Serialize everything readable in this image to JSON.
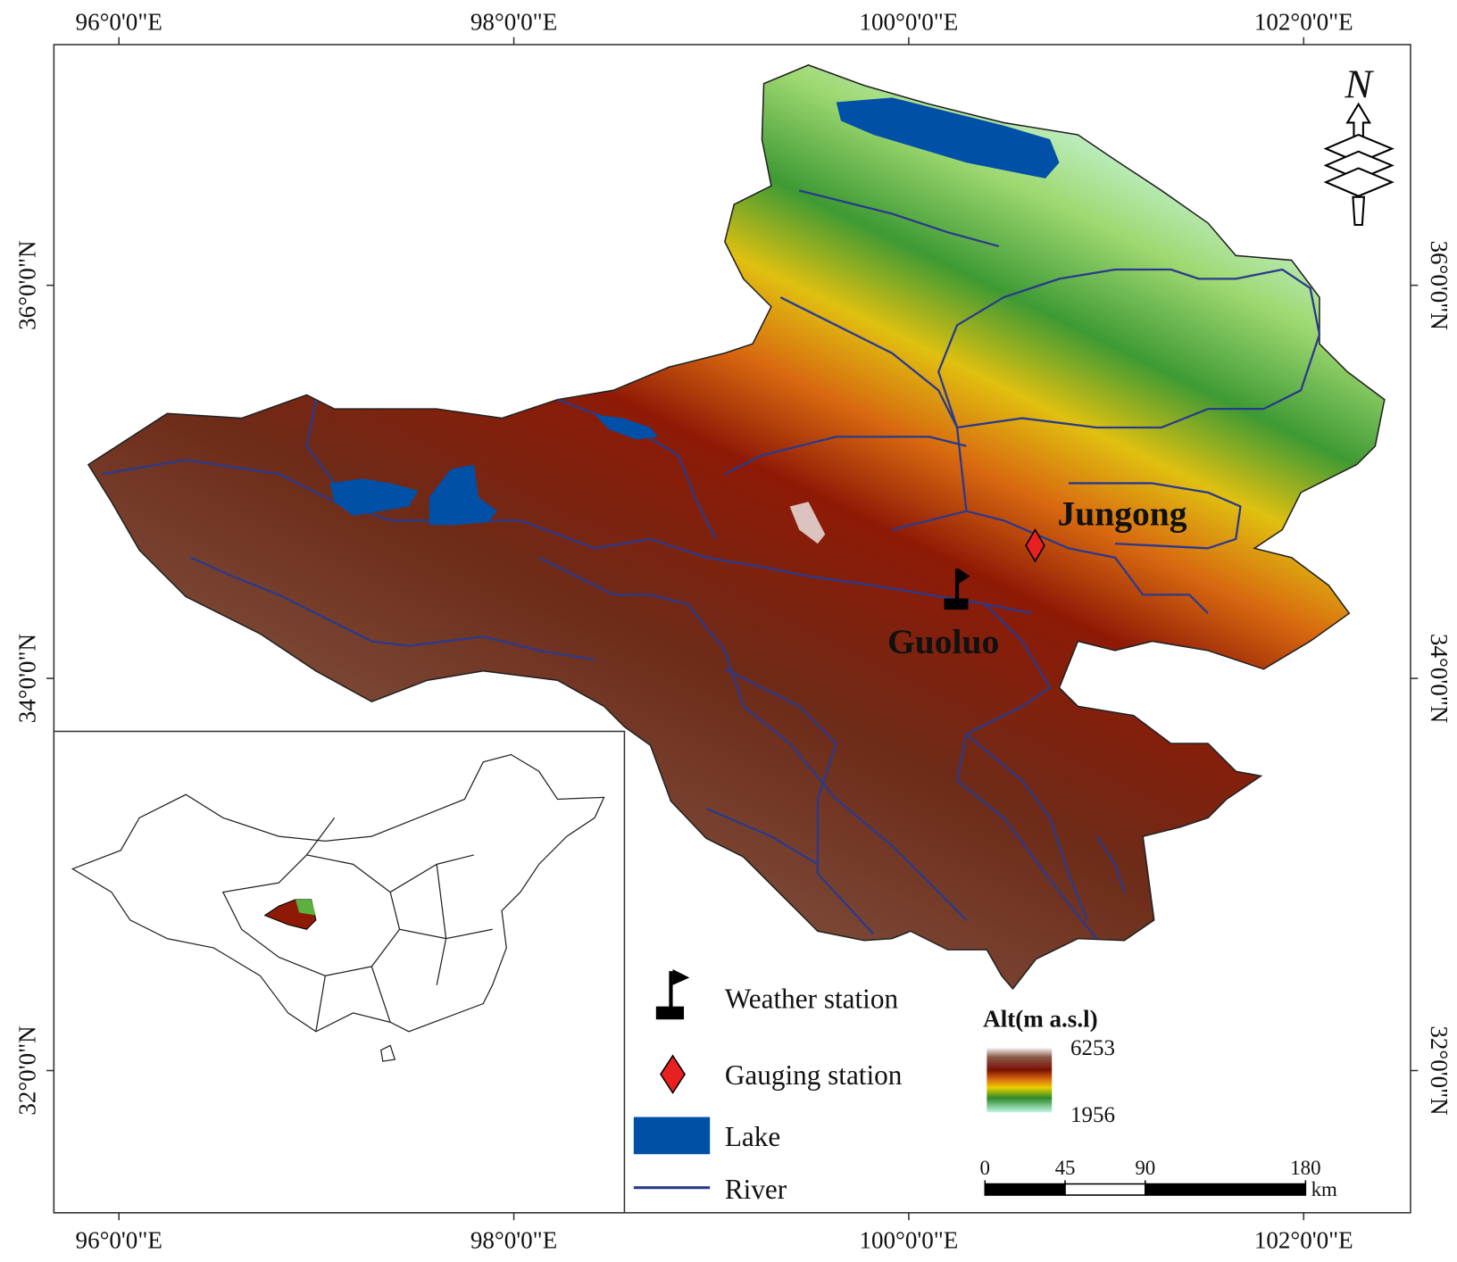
{
  "graticule": {
    "longitude": [
      "96°0'0\"E",
      "98°0'0\"E",
      "100°0'0\"E",
      "102°0'0\"E"
    ],
    "latitude": [
      "36°0'0\"N",
      "34°0'0\"N",
      "32°0'0\"N"
    ]
  },
  "north_arrow": "N",
  "stations": {
    "gauging": "Jungong",
    "weather": "Guoluo"
  },
  "legend": {
    "items": [
      "Weather station",
      "Gauging station",
      "Lake",
      "River"
    ]
  },
  "altitude_legend": {
    "title": "Alt(m a.s.l)",
    "max": 6253,
    "min": 1956
  },
  "scale_bar": {
    "ticks": [
      0,
      45,
      90,
      180
    ],
    "unit": "km"
  }
}
